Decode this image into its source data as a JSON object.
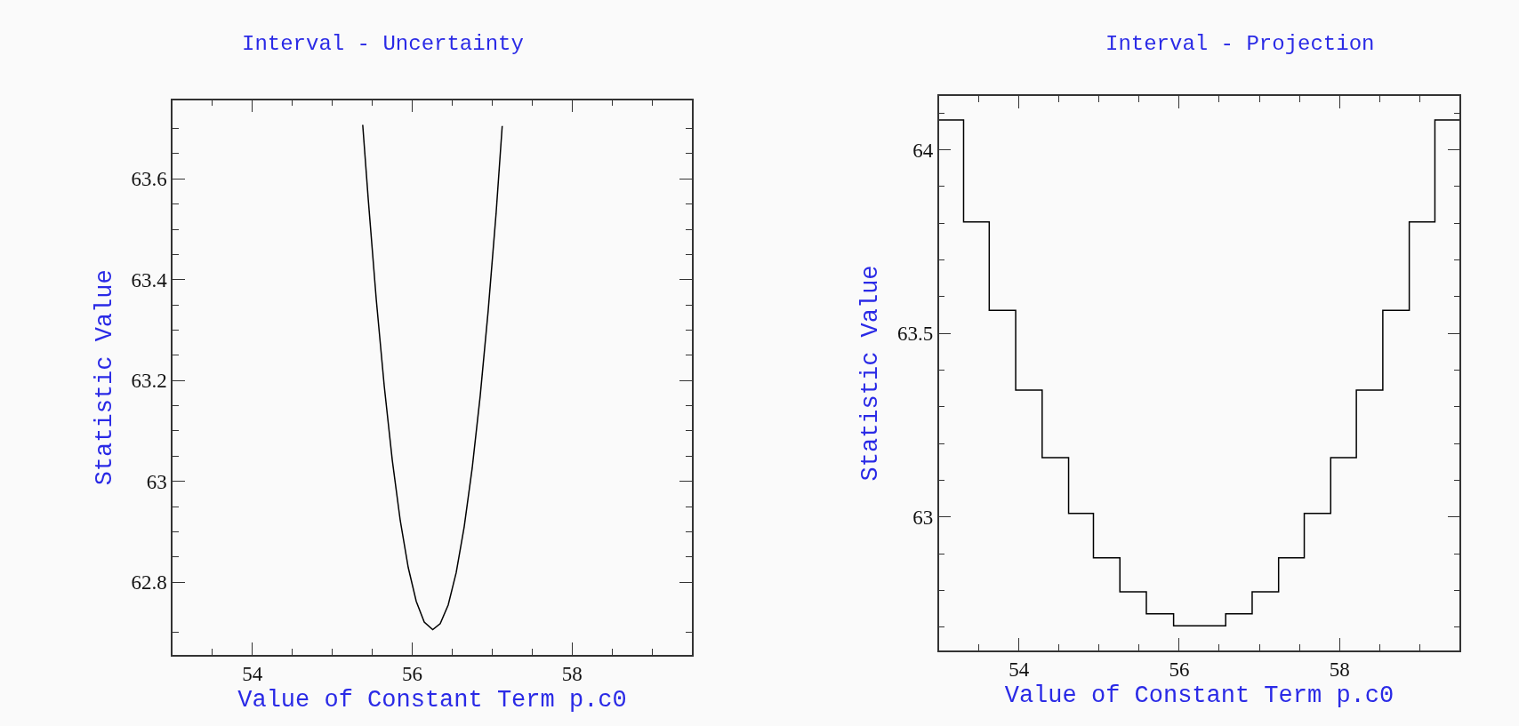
{
  "chart_data": [
    {
      "type": "line",
      "title": "Interval - Uncertainty",
      "xlabel": "Value of Constant Term p.c0",
      "ylabel": "Statistic Value",
      "xlim": [
        53,
        59.5
      ],
      "ylim": [
        62.656,
        63.756
      ],
      "xticks": [
        {
          "value": 53.5,
          "label": null
        },
        54,
        {
          "value": 54.5,
          "label": null
        },
        {
          "value": 55,
          "label": null
        },
        {
          "value": 55.5,
          "label": null
        },
        56,
        {
          "value": 56.5,
          "label": null
        },
        {
          "value": 57,
          "label": null
        },
        {
          "value": 57.5,
          "label": null
        },
        58,
        {
          "value": 58.5,
          "label": null
        },
        {
          "value": 59,
          "label": null
        }
      ],
      "yticks": [
        {
          "value": 62.7,
          "label": null
        },
        62.8,
        {
          "value": 62.85,
          "label": null
        },
        {
          "value": 62.9,
          "label": null
        },
        {
          "value": 62.95,
          "label": null
        },
        63,
        {
          "value": 63.05,
          "label": null
        },
        {
          "value": 63.1,
          "label": null
        },
        {
          "value": 63.15,
          "label": null
        },
        63.2,
        {
          "value": 63.25,
          "label": null
        },
        {
          "value": 63.3,
          "label": null
        },
        {
          "value": 63.35,
          "label": null
        },
        63.4,
        {
          "value": 63.45,
          "label": null
        },
        {
          "value": 63.5,
          "label": null
        },
        {
          "value": 63.55,
          "label": null
        },
        63.6,
        {
          "value": 63.65,
          "label": null
        },
        {
          "value": 63.7,
          "label": null
        }
      ],
      "grid": false,
      "series": [
        {
          "color": "#000000",
          "x": [
            55.38,
            55.45,
            55.55,
            55.65,
            55.75,
            55.85,
            55.95,
            56.05,
            56.15,
            56.256,
            56.35,
            56.45,
            56.55,
            56.65,
            56.75,
            56.85,
            56.95,
            57.05,
            57.126
          ],
          "values": [
            63.707,
            63.558,
            63.36,
            63.188,
            63.042,
            62.922,
            62.829,
            62.762,
            62.721,
            62.706,
            62.718,
            62.755,
            62.819,
            62.91,
            63.026,
            63.169,
            63.338,
            63.533,
            63.705
          ]
        }
      ]
    },
    {
      "type": "step",
      "title": "Interval - Projection",
      "xlabel": "Value of Constant Term p.c0",
      "ylabel": "Statistic Value",
      "xlim": [
        53,
        59.5
      ],
      "ylim": [
        62.637,
        64.147
      ],
      "xticks": [
        {
          "value": 53.5,
          "label": null
        },
        54,
        {
          "value": 54.5,
          "label": null
        },
        {
          "value": 55,
          "label": null
        },
        {
          "value": 55.5,
          "label": null
        },
        56,
        {
          "value": 56.5,
          "label": null
        },
        {
          "value": 57,
          "label": null
        },
        {
          "value": 57.5,
          "label": null
        },
        58,
        {
          "value": 58.5,
          "label": null
        },
        {
          "value": 59,
          "label": null
        }
      ],
      "yticks": [
        {
          "value": 62.7,
          "label": null
        },
        {
          "value": 62.8,
          "label": null
        },
        {
          "value": 62.9,
          "label": null
        },
        63,
        {
          "value": 63.1,
          "label": null
        },
        {
          "value": 63.2,
          "label": null
        },
        {
          "value": 63.3,
          "label": null
        },
        {
          "value": 63.4,
          "label": null
        },
        63.5,
        {
          "value": 63.6,
          "label": null
        },
        {
          "value": 63.7,
          "label": null
        },
        {
          "value": 63.8,
          "label": null
        },
        {
          "value": 63.9,
          "label": null
        },
        64,
        {
          "value": 64.1,
          "label": null
        }
      ],
      "grid": false,
      "series": [
        {
          "color": "#000000",
          "x": [
            53.0,
            53.31,
            53.63,
            53.96,
            54.29,
            54.62,
            54.93,
            55.26,
            55.59,
            55.93,
            56.58,
            56.91,
            57.24,
            57.56,
            57.89,
            58.21,
            58.54,
            58.87,
            59.19,
            59.5
          ],
          "values": [
            64.081,
            63.804,
            63.563,
            63.346,
            63.162,
            63.01,
            62.889,
            62.797,
            62.737,
            62.704,
            62.737,
            62.797,
            62.889,
            63.01,
            63.162,
            63.346,
            63.563,
            63.804,
            64.081,
            64.081
          ]
        }
      ]
    }
  ]
}
